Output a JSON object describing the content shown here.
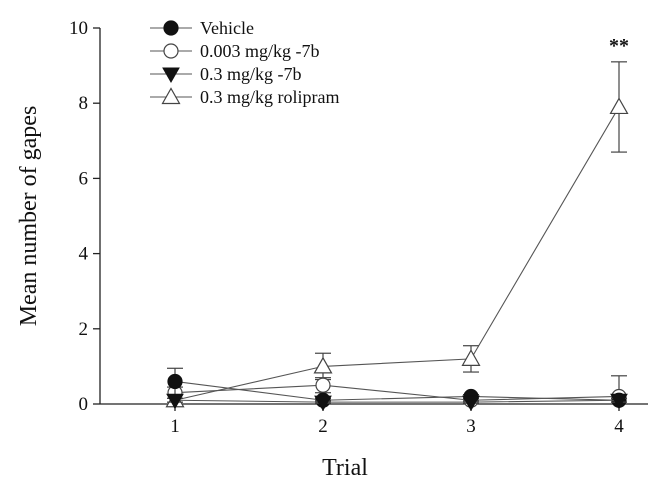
{
  "chart_data": {
    "type": "line",
    "title": "",
    "xlabel": "Trial",
    "ylabel": "Mean number of gapes",
    "x": [
      1,
      2,
      3,
      4
    ],
    "x_ticks": [
      "1",
      "2",
      "3",
      "4"
    ],
    "y_ticks": [
      "0",
      "2",
      "4",
      "6",
      "8",
      "10"
    ],
    "ylim": [
      0,
      10
    ],
    "xlim": [
      0.5,
      4.2
    ],
    "grid": false,
    "legend_position": "top-left",
    "series": [
      {
        "name": "Vehicle",
        "marker": "filled-circle",
        "values": [
          0.6,
          0.1,
          0.2,
          0.1
        ],
        "errors": [
          0.35,
          0.05,
          0.05,
          0.05
        ]
      },
      {
        "name": "0.003 mg/kg -7b",
        "marker": "open-circle",
        "values": [
          0.3,
          0.5,
          0.1,
          0.2
        ],
        "errors": [
          0.15,
          0.2,
          0.05,
          0.55
        ]
      },
      {
        "name": "0.3 mg/kg -7b",
        "marker": "filled-triangle-down",
        "values": [
          0.1,
          0.05,
          0.05,
          0.1
        ],
        "errors": [
          0.05,
          0.03,
          0.03,
          0.05
        ]
      },
      {
        "name": "0.3 mg/kg rolipram",
        "marker": "open-triangle-up",
        "values": [
          0.1,
          1.0,
          1.2,
          7.9
        ],
        "errors": [
          0.05,
          0.35,
          0.35,
          1.2
        ]
      }
    ],
    "annotations": [
      {
        "text": "**",
        "x": 4
      }
    ]
  }
}
